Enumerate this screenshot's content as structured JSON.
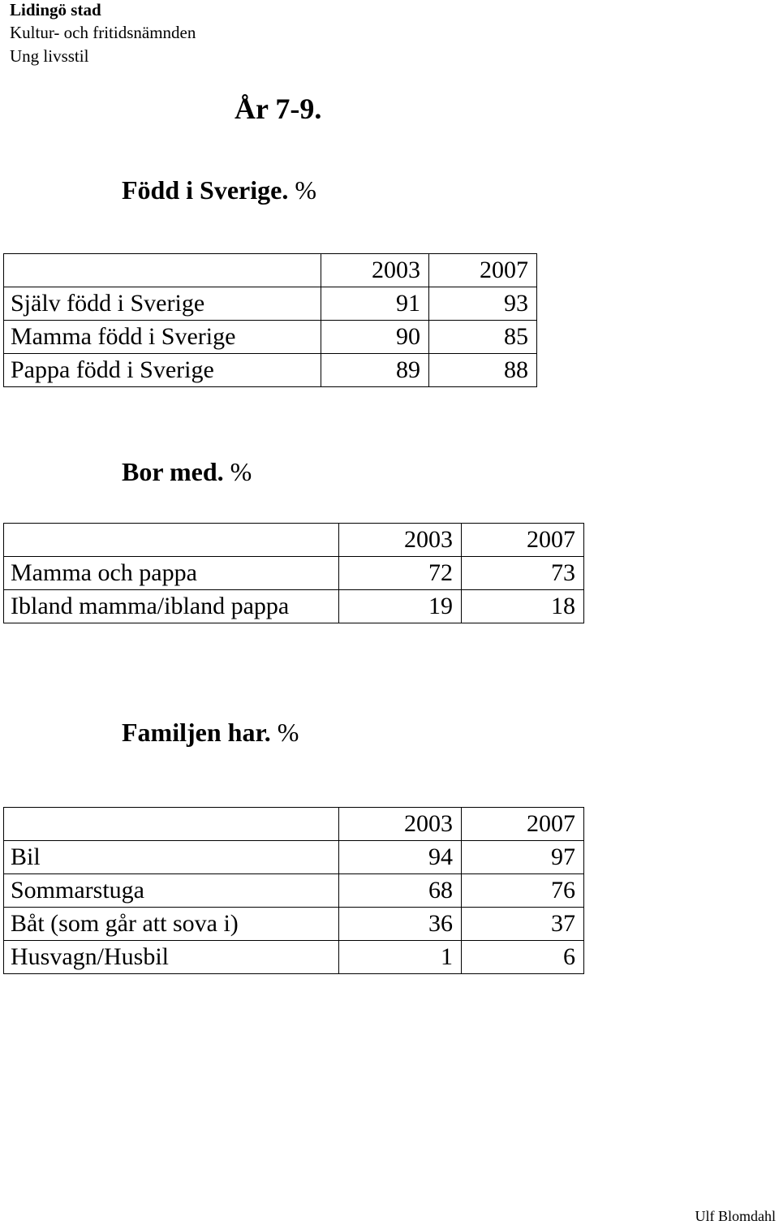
{
  "header": {
    "organization": "Lidingö stad",
    "department": "Kultur- och fritidsnämnden",
    "project": "Ung livsstil"
  },
  "page_title": "År 7-9.",
  "sections": [
    {
      "title": "Född i Sverige.",
      "unit": "%",
      "columns": [
        "2003",
        "2007"
      ],
      "rows": [
        {
          "label": "Själv född i Sverige",
          "values": [
            "91",
            "93"
          ]
        },
        {
          "label": "Mamma född i Sverige",
          "values": [
            "90",
            "85"
          ]
        },
        {
          "label": "Pappa född i Sverige",
          "values": [
            "89",
            "88"
          ]
        }
      ]
    },
    {
      "title": "Bor med.",
      "unit": "%",
      "columns": [
        "2003",
        "2007"
      ],
      "rows": [
        {
          "label": "Mamma och pappa",
          "values": [
            "72",
            "73"
          ]
        },
        {
          "label": "Ibland mamma/ibland pappa",
          "values": [
            "19",
            "18"
          ]
        }
      ]
    },
    {
      "title": "Familjen har.",
      "unit": "%",
      "columns": [
        "2003",
        "2007"
      ],
      "rows": [
        {
          "label": "Bil",
          "values": [
            "94",
            "97"
          ]
        },
        {
          "label": "Sommarstuga",
          "values": [
            "68",
            "76"
          ]
        },
        {
          "label": "Båt (som går att sova i)",
          "values": [
            "36",
            "37"
          ]
        },
        {
          "label": "Husvagn/Husbil",
          "values": [
            "1",
            "6"
          ]
        }
      ]
    }
  ],
  "footer": {
    "author": "Ulf Blomdahl"
  }
}
